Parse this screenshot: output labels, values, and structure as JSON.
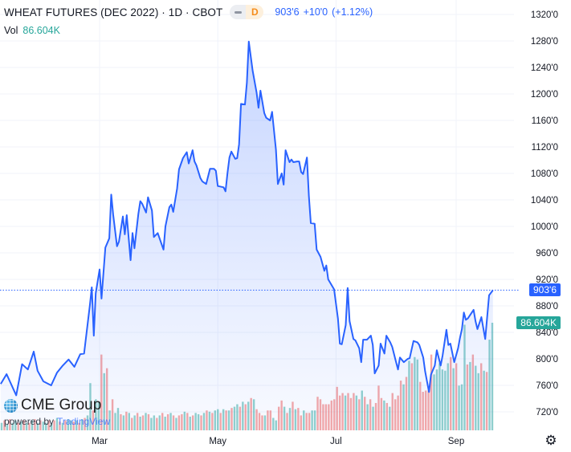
{
  "header": {
    "title": "WHEAT FUTURES (DEC 2022) · 1D · CBOT",
    "interval_badge": "D",
    "last_price": "903'6",
    "change": "+10'0",
    "change_pct": "(+1.12%)",
    "vol_label": "Vol",
    "vol_value": "86.604K"
  },
  "branding": {
    "logo": "CME Group",
    "powered_by": "powered by",
    "platform": "TradingView"
  },
  "price_tag": "903'6",
  "volume_tag": "86.604K",
  "icons": {
    "settings": "gear-icon"
  },
  "colors": {
    "line": "#2962ff",
    "up_volume": "#26a69a",
    "down_volume": "#ef5350",
    "price_tag": "#2962ff",
    "volume_tag": "#26a69a"
  },
  "chart_data": {
    "type": "area",
    "title": "WHEAT FUTURES (DEC 2022) · 1D · CBOT",
    "ylim": [
      700,
      1340
    ],
    "y_ticks": [
      "1320'0",
      "1280'0",
      "1240'0",
      "1200'0",
      "1160'0",
      "1120'0",
      "1080'0",
      "1040'0",
      "1000'0",
      "960'0",
      "920'0",
      "880'0",
      "840'0",
      "800'0",
      "760'0",
      "720'0"
    ],
    "y_tick_values": [
      1320,
      1280,
      1240,
      1200,
      1160,
      1120,
      1080,
      1040,
      1000,
      960,
      920,
      880,
      840,
      800,
      760,
      720
    ],
    "x_ticks": [
      {
        "label": "Mar",
        "date": "2022-03-01"
      },
      {
        "label": "May",
        "date": "2022-05-01"
      },
      {
        "label": "Jul",
        "date": "2022-07-01"
      },
      {
        "label": "Sep",
        "date": "2022-09-01"
      }
    ],
    "grid": true,
    "last_price": 903.75,
    "series": [
      {
        "type": "line",
        "points": [
          [
            "2022-01-09",
            762
          ],
          [
            "2022-01-12",
            777
          ],
          [
            "2022-01-17",
            745
          ],
          [
            "2022-01-20",
            792
          ],
          [
            "2022-01-23",
            784
          ],
          [
            "2022-01-26",
            811
          ],
          [
            "2022-01-28",
            782
          ],
          [
            "2022-01-31",
            766
          ],
          [
            "2022-02-04",
            760
          ],
          [
            "2022-02-07",
            779
          ],
          [
            "2022-02-10",
            790
          ],
          [
            "2022-02-13",
            799
          ],
          [
            "2022-02-16",
            788
          ],
          [
            "2022-02-19",
            807
          ],
          [
            "2022-02-21",
            808
          ],
          [
            "2022-02-24",
            881
          ],
          [
            "2022-02-25",
            908
          ],
          [
            "2022-02-26",
            835
          ],
          [
            "2022-02-27",
            899
          ],
          [
            "2022-03-01",
            935
          ],
          [
            "2022-03-02",
            891
          ],
          [
            "2022-03-04",
            968
          ],
          [
            "2022-03-06",
            982
          ],
          [
            "2022-03-07",
            1048
          ],
          [
            "2022-03-08",
            1018
          ],
          [
            "2022-03-10",
            970
          ],
          [
            "2022-03-11",
            977
          ],
          [
            "2022-03-13",
            1015
          ],
          [
            "2022-03-14",
            988
          ],
          [
            "2022-03-15",
            1017
          ],
          [
            "2022-03-17",
            949
          ],
          [
            "2022-03-18",
            990
          ],
          [
            "2022-03-19",
            967
          ],
          [
            "2022-03-21",
            1019
          ],
          [
            "2022-03-22",
            1038
          ],
          [
            "2022-03-23",
            1034
          ],
          [
            "2022-03-25",
            1021
          ],
          [
            "2022-03-26",
            1044
          ],
          [
            "2022-03-28",
            1024
          ],
          [
            "2022-03-29",
            984
          ],
          [
            "2022-03-31",
            990
          ],
          [
            "2022-04-03",
            965
          ],
          [
            "2022-04-04",
            1000
          ],
          [
            "2022-04-06",
            1029
          ],
          [
            "2022-04-07",
            1033
          ],
          [
            "2022-04-08",
            1022
          ],
          [
            "2022-04-10",
            1057
          ],
          [
            "2022-04-11",
            1086
          ],
          [
            "2022-04-13",
            1103
          ],
          [
            "2022-04-15",
            1112
          ],
          [
            "2022-04-16",
            1095
          ],
          [
            "2022-04-18",
            1115
          ],
          [
            "2022-04-19",
            1098
          ],
          [
            "2022-04-20",
            1092
          ],
          [
            "2022-04-22",
            1073
          ],
          [
            "2022-04-23",
            1068
          ],
          [
            "2022-04-25",
            1064
          ],
          [
            "2022-04-27",
            1087
          ],
          [
            "2022-04-29",
            1087
          ],
          [
            "2022-04-30",
            1084
          ],
          [
            "2022-05-01",
            1061
          ],
          [
            "2022-05-04",
            1059
          ],
          [
            "2022-05-05",
            1053
          ],
          [
            "2022-05-06",
            1081
          ],
          [
            "2022-05-07",
            1104
          ],
          [
            "2022-05-08",
            1113
          ],
          [
            "2022-05-10",
            1102
          ],
          [
            "2022-05-11",
            1103
          ],
          [
            "2022-05-12",
            1124
          ],
          [
            "2022-05-13",
            1185
          ],
          [
            "2022-05-15",
            1184
          ],
          [
            "2022-05-16",
            1217
          ],
          [
            "2022-05-17",
            1279
          ],
          [
            "2022-05-19",
            1235
          ],
          [
            "2022-05-21",
            1202
          ],
          [
            "2022-05-22",
            1179
          ],
          [
            "2022-05-23",
            1205
          ],
          [
            "2022-05-25",
            1171
          ],
          [
            "2022-05-26",
            1164
          ],
          [
            "2022-05-28",
            1160
          ],
          [
            "2022-05-29",
            1173
          ],
          [
            "2022-05-31",
            1116
          ],
          [
            "2022-06-01",
            1064
          ],
          [
            "2022-06-03",
            1080
          ],
          [
            "2022-06-04",
            1063
          ],
          [
            "2022-06-05",
            1115
          ],
          [
            "2022-06-07",
            1097
          ],
          [
            "2022-06-08",
            1101
          ],
          [
            "2022-06-09",
            1097
          ],
          [
            "2022-06-11",
            1098
          ],
          [
            "2022-06-12",
            1098
          ],
          [
            "2022-06-13",
            1082
          ],
          [
            "2022-06-14",
            1079
          ],
          [
            "2022-06-16",
            1104
          ],
          [
            "2022-06-17",
            1046
          ],
          [
            "2022-06-18",
            1005
          ],
          [
            "2022-06-20",
            1004
          ],
          [
            "2022-06-21",
            965
          ],
          [
            "2022-06-23",
            954
          ],
          [
            "2022-06-25",
            933
          ],
          [
            "2022-06-26",
            941
          ],
          [
            "2022-06-27",
            920
          ],
          [
            "2022-06-30",
            905
          ],
          [
            "2022-07-02",
            861
          ],
          [
            "2022-07-03",
            823
          ],
          [
            "2022-07-04",
            822
          ],
          [
            "2022-07-06",
            851
          ],
          [
            "2022-07-07",
            907
          ],
          [
            "2022-07-08",
            857
          ],
          [
            "2022-07-10",
            830
          ],
          [
            "2022-07-11",
            828
          ],
          [
            "2022-07-13",
            816
          ],
          [
            "2022-07-14",
            795
          ],
          [
            "2022-07-15",
            829
          ],
          [
            "2022-07-17",
            829
          ],
          [
            "2022-07-19",
            835
          ],
          [
            "2022-07-20",
            821
          ],
          [
            "2022-07-21",
            778
          ],
          [
            "2022-07-23",
            790
          ],
          [
            "2022-07-24",
            823
          ],
          [
            "2022-07-26",
            808
          ],
          [
            "2022-07-27",
            835
          ],
          [
            "2022-07-29",
            825
          ],
          [
            "2022-07-30",
            818
          ],
          [
            "2022-08-01",
            795
          ],
          [
            "2022-08-02",
            784
          ],
          [
            "2022-08-03",
            802
          ],
          [
            "2022-08-05",
            795
          ],
          [
            "2022-08-07",
            800
          ],
          [
            "2022-08-08",
            801
          ],
          [
            "2022-08-10",
            827
          ],
          [
            "2022-08-12",
            825
          ],
          [
            "2022-08-13",
            821
          ],
          [
            "2022-08-15",
            802
          ],
          [
            "2022-08-16",
            781
          ],
          [
            "2022-08-18",
            750
          ],
          [
            "2022-08-19",
            776
          ],
          [
            "2022-08-21",
            790
          ],
          [
            "2022-08-22",
            813
          ],
          [
            "2022-08-24",
            790
          ],
          [
            "2022-08-25",
            805
          ],
          [
            "2022-08-27",
            844
          ],
          [
            "2022-08-28",
            821
          ],
          [
            "2022-08-29",
            823
          ],
          [
            "2022-08-31",
            795
          ],
          [
            "2022-09-02",
            816
          ],
          [
            "2022-09-03",
            832
          ],
          [
            "2022-09-04",
            845
          ],
          [
            "2022-09-05",
            870
          ],
          [
            "2022-09-06",
            859
          ],
          [
            "2022-09-07",
            861
          ],
          [
            "2022-09-10",
            874
          ],
          [
            "2022-09-11",
            857
          ],
          [
            "2022-09-12",
            845
          ],
          [
            "2022-09-14",
            863
          ],
          [
            "2022-09-16",
            830
          ],
          [
            "2022-09-18",
            896
          ],
          [
            "2022-09-20",
            903.75
          ]
        ]
      },
      {
        "type": "volume",
        "unit": "K",
        "values": [
          6,
          8,
          5,
          9,
          6,
          8,
          6,
          7,
          8,
          6,
          6,
          8,
          9,
          6,
          8,
          7,
          6,
          8,
          6,
          8,
          10,
          7,
          6,
          8,
          9,
          8,
          7,
          8,
          6,
          9,
          10,
          12,
          38,
          16,
          25,
          23,
          61,
          46,
          50,
          16,
          25,
          14,
          18,
          13,
          12,
          15,
          14,
          10,
          12,
          14,
          11,
          12,
          14,
          13,
          10,
          12,
          10,
          12,
          14,
          11,
          13,
          14,
          12,
          10,
          12,
          13,
          15,
          14,
          11,
          12,
          14,
          13,
          12,
          14,
          16,
          15,
          14,
          16,
          17,
          14,
          17,
          16,
          16,
          18,
          19,
          21,
          19,
          23,
          21,
          23,
          26,
          25,
          17,
          14,
          12,
          12,
          16,
          16,
          10,
          8,
          19,
          24,
          19,
          14,
          18,
          23,
          17,
          18,
          12,
          16,
          14,
          14,
          16,
          16,
          27,
          25,
          21,
          21,
          21,
          24,
          25,
          35,
          28,
          30,
          28,
          30,
          26,
          30,
          28,
          25,
          32,
          27,
          21,
          25,
          19,
          22,
          36,
          26,
          24,
          22,
          19,
          30,
          25,
          28,
          40,
          37,
          43,
          56,
          54,
          59,
          57,
          39,
          31,
          32,
          32,
          61,
          45,
          49,
          54,
          49,
          48,
          54,
          59,
          50,
          54,
          36,
          37,
          85,
          53,
          55,
          61,
          52,
          46,
          54,
          48,
          47,
          73,
          86.604
        ],
        "direction": [
          "u",
          "d",
          "u",
          "d",
          "u",
          "u",
          "d",
          "u",
          "d",
          "u",
          "d",
          "u",
          "d",
          "u",
          "d",
          "u",
          "u",
          "d",
          "u",
          "d",
          "u",
          "d",
          "u",
          "d",
          "u",
          "u",
          "d",
          "u",
          "d",
          "u",
          "d",
          "u",
          "u",
          "d",
          "u",
          "u",
          "d",
          "u",
          "d",
          "u",
          "d",
          "u",
          "u",
          "d",
          "u",
          "d",
          "u",
          "d",
          "u",
          "d",
          "u",
          "d",
          "u",
          "d",
          "u",
          "u",
          "d",
          "u",
          "d",
          "u",
          "d",
          "u",
          "d",
          "u",
          "d",
          "d",
          "u",
          "d",
          "u",
          "d",
          "u",
          "u",
          "d",
          "u",
          "d",
          "u",
          "d",
          "u",
          "u",
          "d",
          "u",
          "d",
          "u",
          "d",
          "u",
          "u",
          "d",
          "u",
          "d",
          "u",
          "d",
          "u",
          "d",
          "d",
          "d",
          "u",
          "d",
          "d",
          "u",
          "u",
          "d",
          "d",
          "u",
          "d",
          "u",
          "d",
          "u",
          "d",
          "d",
          "u",
          "d",
          "d",
          "u",
          "u",
          "d",
          "d",
          "d",
          "d",
          "d",
          "d",
          "d",
          "d",
          "d",
          "d",
          "u",
          "d",
          "d",
          "d",
          "u",
          "d",
          "u",
          "d",
          "u",
          "d",
          "u",
          "d",
          "d",
          "d",
          "u",
          "d",
          "u",
          "d",
          "d",
          "d",
          "d",
          "u",
          "d",
          "u",
          "d",
          "u",
          "u",
          "d",
          "d",
          "d",
          "d",
          "d",
          "u",
          "u",
          "u",
          "u",
          "u",
          "u",
          "d",
          "u",
          "d",
          "u",
          "u",
          "u",
          "d",
          "u",
          "d",
          "u",
          "u",
          "d",
          "u",
          "d",
          "u",
          "u"
        ]
      }
    ]
  }
}
